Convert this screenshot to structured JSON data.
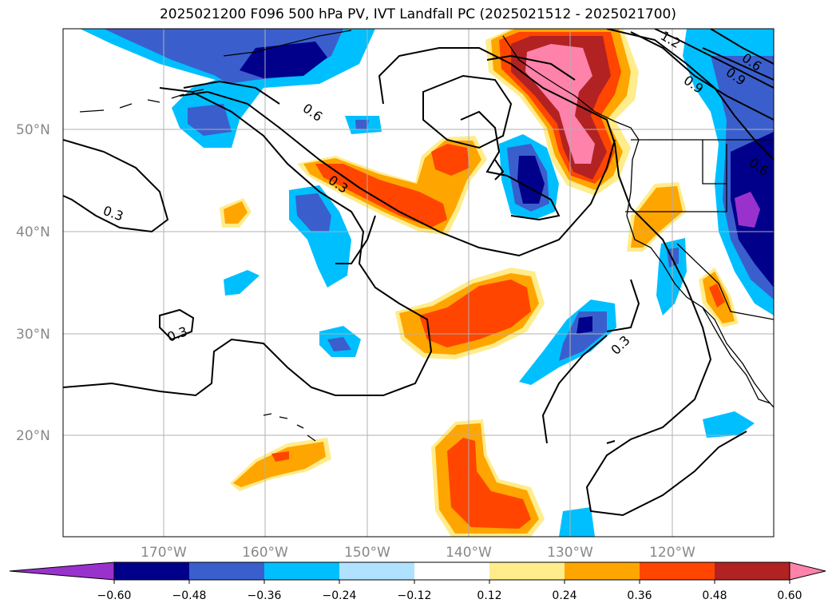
{
  "title": "2025021200 F096 500 hPa PV, IVT Landfall PC (2025021512 - 2025021700)",
  "map": {
    "lat_labels": [
      "50°N",
      "40°N",
      "30°N",
      "20°N"
    ],
    "lon_labels": [
      "170°W",
      "160°W",
      "150°W",
      "140°W",
      "130°W",
      "120°W"
    ],
    "contour_labels": [
      "0.3",
      "0.3",
      "0.3",
      "0.3",
      "0.6",
      "0.6",
      "0.6",
      "0.9",
      "0.9",
      "1.2"
    ],
    "colors": {
      "c_neg60": "#9932cc",
      "c_neg48": "#00008b",
      "c_neg36": "#3a5fcd",
      "c_neg24": "#00bfff",
      "c_neg12": "#b0e2ff",
      "c_zero": "#ffffff",
      "c_pos12": "#ffec8b",
      "c_pos24": "#ffa500",
      "c_pos36": "#ff4500",
      "c_pos48": "#b22222",
      "c_pos60": "#ff82ab"
    }
  },
  "colorbar": {
    "ticks": [
      "−0.60",
      "−0.48",
      "−0.36",
      "−0.24",
      "−0.12",
      "0.12",
      "0.24",
      "0.36",
      "0.48",
      "0.60"
    ],
    "colors": [
      "#9932cc",
      "#00008b",
      "#3a5fcd",
      "#00bfff",
      "#b0e2ff",
      "#ffffff",
      "#ffec8b",
      "#ffa500",
      "#ff4500",
      "#b22222",
      "#ff82ab"
    ]
  }
}
